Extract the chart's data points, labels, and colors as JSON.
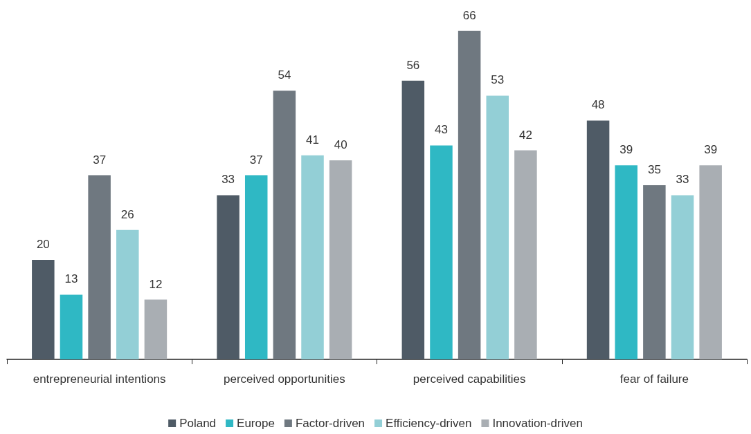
{
  "chart_data": {
    "type": "bar",
    "categories": [
      "entrepreneurial intentions",
      "perceived opportunities",
      "perceived capabilities",
      "fear of failure"
    ],
    "series": [
      {
        "name": "Poland",
        "color": "#4f5b66",
        "values": [
          20,
          33,
          56,
          48
        ]
      },
      {
        "name": "Europe",
        "color": "#2fb8c4",
        "values": [
          13,
          37,
          43,
          39
        ]
      },
      {
        "name": "Factor-driven",
        "color": "#6f7880",
        "values": [
          37,
          54,
          66,
          35
        ]
      },
      {
        "name": "Efficiency-driven",
        "color": "#93cfd6",
        "values": [
          26,
          41,
          53,
          33
        ]
      },
      {
        "name": "Innovation-driven",
        "color": "#a9aeb3",
        "values": [
          12,
          40,
          42,
          39
        ]
      }
    ],
    "data_labels": true,
    "legend": "bottom"
  }
}
